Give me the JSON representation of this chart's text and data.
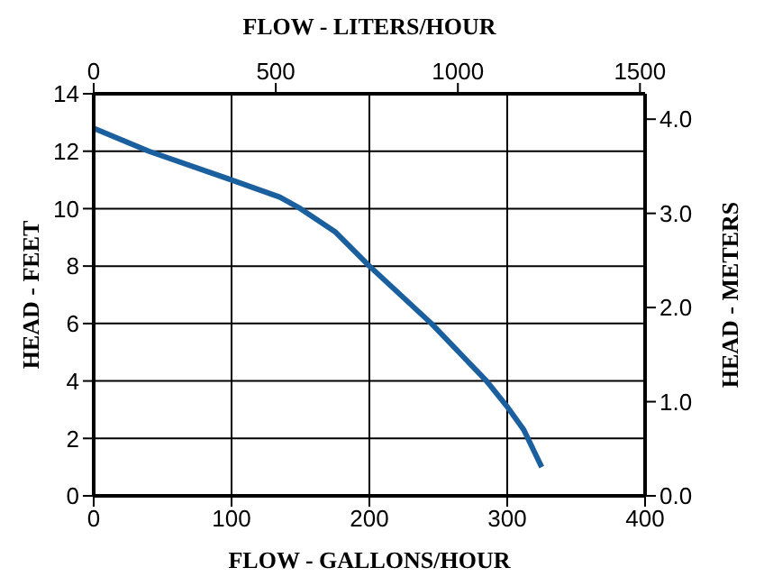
{
  "chart_data": {
    "type": "line",
    "xlabel": "FLOW - GALLONS/HOUR",
    "x2label": "FLOW - LITERS/HOUR",
    "ylabel": "HEAD - FEET",
    "y2label": "HEAD - METERS",
    "x": [
      0,
      40,
      100,
      135,
      150,
      175,
      200,
      245,
      265,
      285,
      300,
      312,
      325
    ],
    "series": [
      {
        "color": "#1a5f9e",
        "values": [
          12.8,
          12,
          11,
          10.4,
          10,
          9.2,
          8,
          6,
          5,
          4,
          3.1,
          2.3,
          1
        ]
      }
    ],
    "xlim": [
      0,
      400
    ],
    "xticks": [
      0,
      100,
      200,
      300,
      400
    ],
    "x2lim": [
      0,
      1514
    ],
    "x2ticks": [
      0,
      500,
      1000,
      1500
    ],
    "ylim": [
      0,
      14
    ],
    "yticks": [
      0,
      2,
      4,
      6,
      8,
      10,
      12,
      14
    ],
    "y2lim": [
      0,
      4.27
    ],
    "y2ticks": [
      {
        "value": 0,
        "label": "0.0"
      },
      {
        "value": 1,
        "label": "1.0"
      },
      {
        "value": 2,
        "label": "2.0"
      },
      {
        "value": 3,
        "label": "3.0"
      },
      {
        "value": 4,
        "label": "4.0"
      }
    ],
    "grid": true,
    "marker": "none",
    "line_style": "solid"
  }
}
